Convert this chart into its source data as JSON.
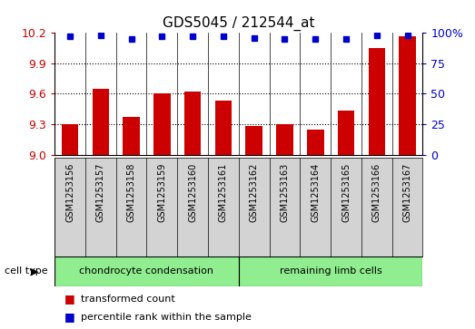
{
  "title": "GDS5045 / 212544_at",
  "samples": [
    "GSM1253156",
    "GSM1253157",
    "GSM1253158",
    "GSM1253159",
    "GSM1253160",
    "GSM1253161",
    "GSM1253162",
    "GSM1253163",
    "GSM1253164",
    "GSM1253165",
    "GSM1253166",
    "GSM1253167"
  ],
  "transformed_count": [
    9.3,
    9.65,
    9.37,
    9.6,
    9.62,
    9.53,
    9.28,
    9.3,
    9.25,
    9.43,
    10.05,
    10.17
  ],
  "percentile_rank": [
    97,
    98,
    95,
    97,
    97,
    97,
    96,
    95,
    95,
    95,
    98,
    98
  ],
  "cell_type_groups": [
    {
      "label": "chondrocyte condensation",
      "start": 0,
      "end": 6,
      "color": "#90EE90"
    },
    {
      "label": "remaining limb cells",
      "start": 6,
      "end": 12,
      "color": "#90EE90"
    }
  ],
  "ylim_left": [
    9.0,
    10.2
  ],
  "ylim_right": [
    0,
    100
  ],
  "yticks_left": [
    9.0,
    9.3,
    9.6,
    9.9,
    10.2
  ],
  "yticks_right": [
    0,
    25,
    50,
    75,
    100
  ],
  "ytick_labels_right": [
    "0",
    "25",
    "50",
    "75",
    "100%"
  ],
  "bar_color": "#CC0000",
  "dot_color": "#0000CC",
  "label_transformed": "transformed count",
  "label_percentile": "percentile rank within the sample",
  "cell_type_label": "cell type",
  "bg_sample_color": "#D3D3D3",
  "bg_plot_color": "#FFFFFF",
  "bar_width": 0.55
}
